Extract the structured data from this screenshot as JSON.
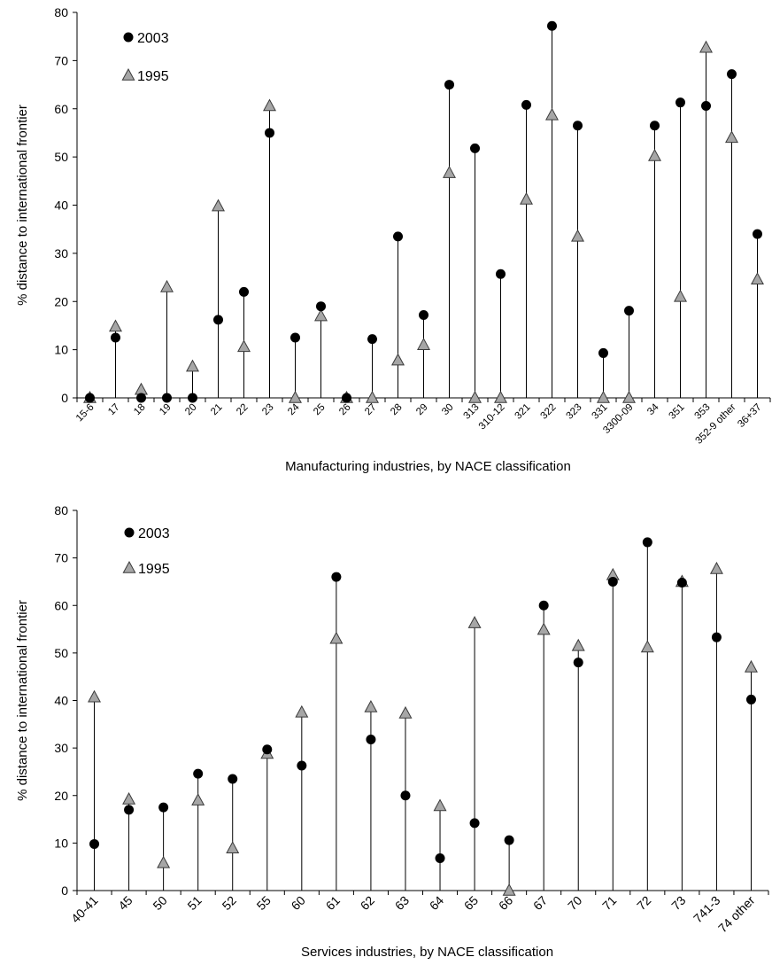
{
  "chart_data": [
    {
      "type": "scatter",
      "xlabel": "Manufacturing industries, by NACE classification",
      "ylabel": "% distance to international frontier",
      "ylim": [
        0,
        80
      ],
      "yticks": [
        0,
        10,
        20,
        30,
        40,
        50,
        60,
        70,
        80
      ],
      "legend_position": "top-left",
      "categories": [
        "15-6",
        "17",
        "18",
        "19",
        "20",
        "21",
        "22",
        "23",
        "24",
        "25",
        "26",
        "27",
        "28",
        "29",
        "30",
        "313",
        "310-12",
        "321",
        "322",
        "323",
        "331",
        "3300-09",
        "34",
        "351",
        "353",
        "352-9 other",
        "36+37"
      ],
      "series": [
        {
          "name": "2003",
          "marker": "circle",
          "color": "#000000",
          "values": [
            0,
            12.5,
            0,
            0,
            0,
            16.2,
            22,
            55,
            12.5,
            19,
            0,
            12.2,
            33.5,
            17.2,
            65,
            51.8,
            25.7,
            60.8,
            77.2,
            56.5,
            9.3,
            18.1,
            56.5,
            61.3,
            60.6,
            67.2,
            34
          ]
        },
        {
          "name": "1995",
          "marker": "triangle",
          "color": "#a6a6a6",
          "values": [
            0,
            14.8,
            1.7,
            23,
            6.5,
            39.8,
            10.6,
            60.6,
            0,
            17,
            0,
            0,
            7.8,
            11,
            46.7,
            0,
            0,
            41.2,
            58.7,
            33.5,
            0,
            0,
            50.2,
            21,
            72.7,
            54,
            24.6
          ]
        }
      ]
    },
    {
      "type": "scatter",
      "xlabel": "Services industries, by NACE classification",
      "ylabel": "% distance to international frontier",
      "ylim": [
        0,
        80
      ],
      "yticks": [
        0,
        10,
        20,
        30,
        40,
        50,
        60,
        70,
        80
      ],
      "legend_position": "top-left",
      "categories": [
        "40-41",
        "45",
        "50",
        "51",
        "52",
        "55",
        "60",
        "61",
        "62",
        "63",
        "64",
        "65",
        "66",
        "67",
        "70",
        "71",
        "72",
        "73",
        "741-3",
        "74 other"
      ],
      "series": [
        {
          "name": "2003",
          "marker": "circle",
          "color": "#000000",
          "values": [
            9.8,
            17,
            17.5,
            24.6,
            23.5,
            29.7,
            26.3,
            66,
            31.8,
            20,
            6.8,
            14.2,
            10.6,
            60,
            48,
            65,
            73.3,
            64.8,
            53.3,
            40.2
          ]
        },
        {
          "name": "1995",
          "marker": "triangle",
          "color": "#a6a6a6",
          "values": [
            40.7,
            19.2,
            5.8,
            19,
            8.9,
            28.8,
            37.5,
            53,
            38.6,
            37.3,
            17.8,
            56.3,
            0,
            54.9,
            51.5,
            66.4,
            51.2,
            65,
            67.7,
            47
          ]
        }
      ]
    }
  ]
}
